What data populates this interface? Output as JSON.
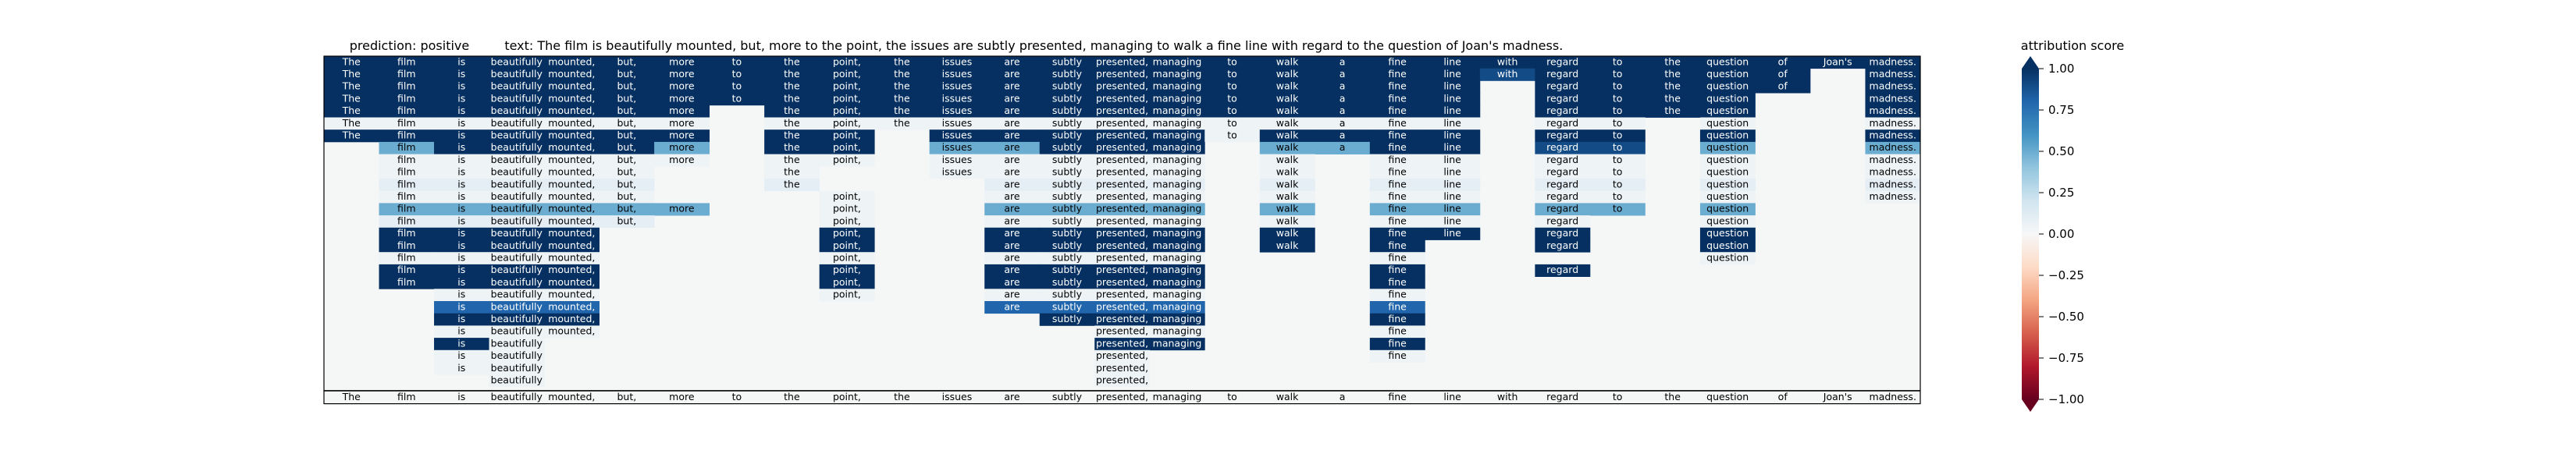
{
  "chart_data": {
    "type": "heatmap",
    "title": "prediction:  positive     text:  The film is beautifully mounted, but, more to the point, the issues are subtly presented, managing to walk a fine line with regard to the question of Joan's madness.",
    "prediction_label": "prediction:  positive",
    "text_label": "text:  The film is beautifully mounted, but, more to the point, the issues are subtly presented, managing to walk a fine line with regard to the question of Joan's madness.",
    "tokens": [
      "The",
      "film",
      "is",
      "beautifully",
      "mounted,",
      "but,",
      "more",
      "to",
      "the",
      "point,",
      "the",
      "issues",
      "are",
      "subtly",
      "presented,",
      "managing",
      "to",
      "walk",
      "a",
      "fine",
      "line",
      "with",
      "regard",
      "to",
      "the",
      "question",
      "of",
      "Joan's",
      "madness."
    ],
    "colorbar": {
      "label": "attribution score",
      "min": -1.0,
      "max": 1.0,
      "ticks": [
        "1.00",
        "0.75",
        "0.50",
        "0.25",
        "0.00",
        "−0.25",
        "−0.50",
        "−0.75",
        "−1.00"
      ],
      "colors": [
        "#67001f",
        "#b2182b",
        "#d6604d",
        "#f4a582",
        "#fddbc7",
        "#f7f7f7",
        "#d1e5f0",
        "#92c5de",
        "#4393c3",
        "#2166ac",
        "#053061"
      ]
    },
    "rows": [
      [
        1,
        1,
        1,
        1,
        1,
        1,
        1,
        1,
        1,
        1,
        1,
        1,
        1,
        1,
        1,
        1,
        1,
        1,
        1,
        1,
        1,
        1,
        1,
        1,
        1,
        1,
        1,
        1,
        1
      ],
      [
        1,
        1,
        1,
        1,
        1,
        1,
        1,
        1,
        1,
        1,
        1,
        1,
        1,
        1,
        1,
        1,
        1,
        1,
        1,
        1,
        1,
        0.9,
        1,
        1,
        1,
        1,
        1,
        null,
        1
      ],
      [
        1,
        1,
        1,
        1,
        1,
        1,
        1,
        1,
        1,
        1,
        1,
        1,
        1,
        1,
        1,
        1,
        1,
        1,
        1,
        1,
        1,
        null,
        1,
        1,
        1,
        1,
        1,
        null,
        1
      ],
      [
        1,
        1,
        1,
        1,
        1,
        1,
        1,
        1,
        1,
        1,
        1,
        1,
        1,
        1,
        1,
        1,
        1,
        1,
        1,
        1,
        1,
        null,
        1,
        1,
        1,
        1,
        null,
        null,
        1
      ],
      [
        1,
        1,
        1,
        1,
        1,
        1,
        1,
        null,
        1,
        1,
        1,
        1,
        1,
        1,
        1,
        1,
        1,
        1,
        1,
        1,
        1,
        null,
        1,
        1,
        1,
        1,
        null,
        null,
        1
      ],
      [
        0.05,
        0.05,
        0.05,
        0.05,
        0.05,
        0.05,
        0.05,
        null,
        0.05,
        0.05,
        0.05,
        0.05,
        0.05,
        0.05,
        0.05,
        0.05,
        0.05,
        0.05,
        0.05,
        0.05,
        0.05,
        null,
        0.05,
        0.05,
        null,
        0.05,
        null,
        null,
        0.05
      ],
      [
        1,
        1,
        1,
        1,
        1,
        1,
        1,
        null,
        1,
        1,
        null,
        1,
        1,
        1,
        1,
        1,
        0.05,
        1,
        1,
        1,
        1,
        null,
        1,
        1,
        null,
        1,
        null,
        null,
        1
      ],
      [
        null,
        0.5,
        1,
        1,
        1,
        1,
        0.5,
        null,
        1,
        1,
        null,
        0.5,
        0.5,
        1,
        1,
        1,
        null,
        0.5,
        0.5,
        1,
        1,
        null,
        0.9,
        0.9,
        null,
        0.5,
        null,
        null,
        0.5
      ],
      [
        null,
        0.05,
        0.05,
        0.05,
        0.05,
        0.05,
        0.05,
        null,
        0.05,
        0.05,
        null,
        0.05,
        0.05,
        0.05,
        0.05,
        0.05,
        null,
        0.05,
        null,
        0.05,
        0.05,
        null,
        0.05,
        0.05,
        null,
        0.05,
        null,
        null,
        0.05
      ],
      [
        null,
        0.05,
        0.05,
        0.05,
        0.05,
        0.05,
        null,
        null,
        0.05,
        null,
        null,
        0.05,
        0.05,
        0.05,
        0.05,
        0.05,
        null,
        0.05,
        null,
        0.05,
        0.05,
        null,
        0.05,
        0.05,
        null,
        0.05,
        null,
        null,
        0.05
      ],
      [
        null,
        0.1,
        0.1,
        0.1,
        0.1,
        0.1,
        null,
        null,
        0.1,
        null,
        null,
        null,
        0.1,
        0.1,
        0.1,
        0.1,
        null,
        0.1,
        null,
        0.1,
        0.1,
        null,
        0.1,
        0.1,
        null,
        0.1,
        null,
        null,
        0.1
      ],
      [
        null,
        0.05,
        0.05,
        0.05,
        0.05,
        0.05,
        null,
        null,
        null,
        0.05,
        null,
        null,
        0.05,
        0.05,
        0.05,
        0.05,
        null,
        0.05,
        null,
        0.05,
        0.05,
        null,
        0.05,
        0.05,
        null,
        0.05,
        null,
        null,
        0.05
      ],
      [
        null,
        0.5,
        0.5,
        0.5,
        0.5,
        0.5,
        0.5,
        null,
        null,
        0.05,
        null,
        null,
        0.5,
        0.5,
        0.5,
        0.5,
        null,
        0.5,
        null,
        0.5,
        0.5,
        null,
        0.5,
        0.5,
        null,
        0.5,
        null,
        null,
        null
      ],
      [
        null,
        0.1,
        0.1,
        0.1,
        0.1,
        0.1,
        null,
        null,
        null,
        0.05,
        null,
        null,
        0.05,
        0.05,
        0.05,
        0.05,
        null,
        0.05,
        null,
        0.05,
        0.05,
        null,
        0.05,
        null,
        null,
        0.05,
        null,
        null,
        null
      ],
      [
        null,
        1,
        1,
        1,
        1,
        null,
        null,
        null,
        null,
        1,
        null,
        null,
        1,
        1,
        1,
        1,
        null,
        1,
        null,
        1,
        1,
        null,
        1,
        null,
        null,
        1,
        null,
        null,
        null
      ],
      [
        null,
        1,
        1,
        1,
        1,
        null,
        null,
        null,
        null,
        1,
        null,
        null,
        1,
        1,
        1,
        1,
        null,
        1,
        null,
        1,
        null,
        null,
        1,
        null,
        null,
        1,
        null,
        null,
        null
      ],
      [
        null,
        0.05,
        0.05,
        0.05,
        0.05,
        null,
        null,
        null,
        null,
        0.05,
        null,
        null,
        0.05,
        0.05,
        0.05,
        0.05,
        null,
        null,
        null,
        0.05,
        null,
        null,
        null,
        null,
        null,
        0.05,
        null,
        null,
        null
      ],
      [
        null,
        1,
        1,
        1,
        1,
        null,
        null,
        null,
        null,
        1,
        null,
        null,
        1,
        1,
        1,
        1,
        null,
        null,
        null,
        1,
        null,
        null,
        1,
        null,
        null,
        null,
        null,
        null,
        null
      ],
      [
        null,
        1,
        1,
        1,
        1,
        null,
        null,
        null,
        null,
        1,
        null,
        null,
        1,
        1,
        1,
        1,
        null,
        null,
        null,
        1,
        null,
        null,
        null,
        null,
        null,
        null,
        null,
        null,
        null
      ],
      [
        null,
        null,
        0.05,
        0.05,
        0.05,
        null,
        null,
        null,
        null,
        0.05,
        null,
        null,
        0.05,
        0.05,
        0.05,
        0.05,
        null,
        null,
        null,
        0.05,
        null,
        null,
        null,
        null,
        null,
        null,
        null,
        null,
        null
      ],
      [
        null,
        null,
        0.8,
        0.8,
        0.8,
        null,
        null,
        null,
        null,
        null,
        null,
        null,
        0.8,
        0.8,
        0.8,
        0.8,
        null,
        null,
        null,
        0.8,
        null,
        null,
        null,
        null,
        null,
        null,
        null,
        null,
        null
      ],
      [
        null,
        null,
        1,
        1,
        1,
        null,
        null,
        null,
        null,
        null,
        null,
        null,
        null,
        1,
        1,
        1,
        null,
        null,
        null,
        1,
        null,
        null,
        null,
        null,
        null,
        null,
        null,
        null,
        null
      ],
      [
        null,
        null,
        0.05,
        0.05,
        0.05,
        null,
        null,
        null,
        null,
        null,
        null,
        null,
        null,
        null,
        0.05,
        0.05,
        null,
        null,
        null,
        0.05,
        null,
        null,
        null,
        null,
        null,
        null,
        null,
        null,
        null
      ],
      [
        null,
        null,
        1,
        0.05,
        null,
        null,
        null,
        null,
        null,
        null,
        null,
        null,
        null,
        null,
        1,
        1,
        null,
        null,
        null,
        1,
        null,
        null,
        null,
        null,
        null,
        null,
        null,
        null,
        null
      ],
      [
        null,
        null,
        0.05,
        0.05,
        null,
        null,
        null,
        null,
        null,
        null,
        null,
        null,
        null,
        null,
        0.05,
        null,
        null,
        null,
        null,
        0.05,
        null,
        null,
        null,
        null,
        null,
        null,
        null,
        null,
        null
      ],
      [
        null,
        null,
        0.05,
        0.05,
        null,
        null,
        null,
        null,
        null,
        null,
        null,
        null,
        null,
        null,
        0.05,
        null,
        null,
        null,
        null,
        null,
        null,
        null,
        null,
        null,
        null,
        null,
        null,
        null,
        null
      ],
      [
        null,
        null,
        null,
        0.05,
        null,
        null,
        null,
        null,
        null,
        null,
        null,
        null,
        null,
        null,
        0.05,
        null,
        null,
        null,
        null,
        null,
        null,
        null,
        null,
        null,
        null,
        null,
        null,
        null,
        null
      ]
    ]
  }
}
